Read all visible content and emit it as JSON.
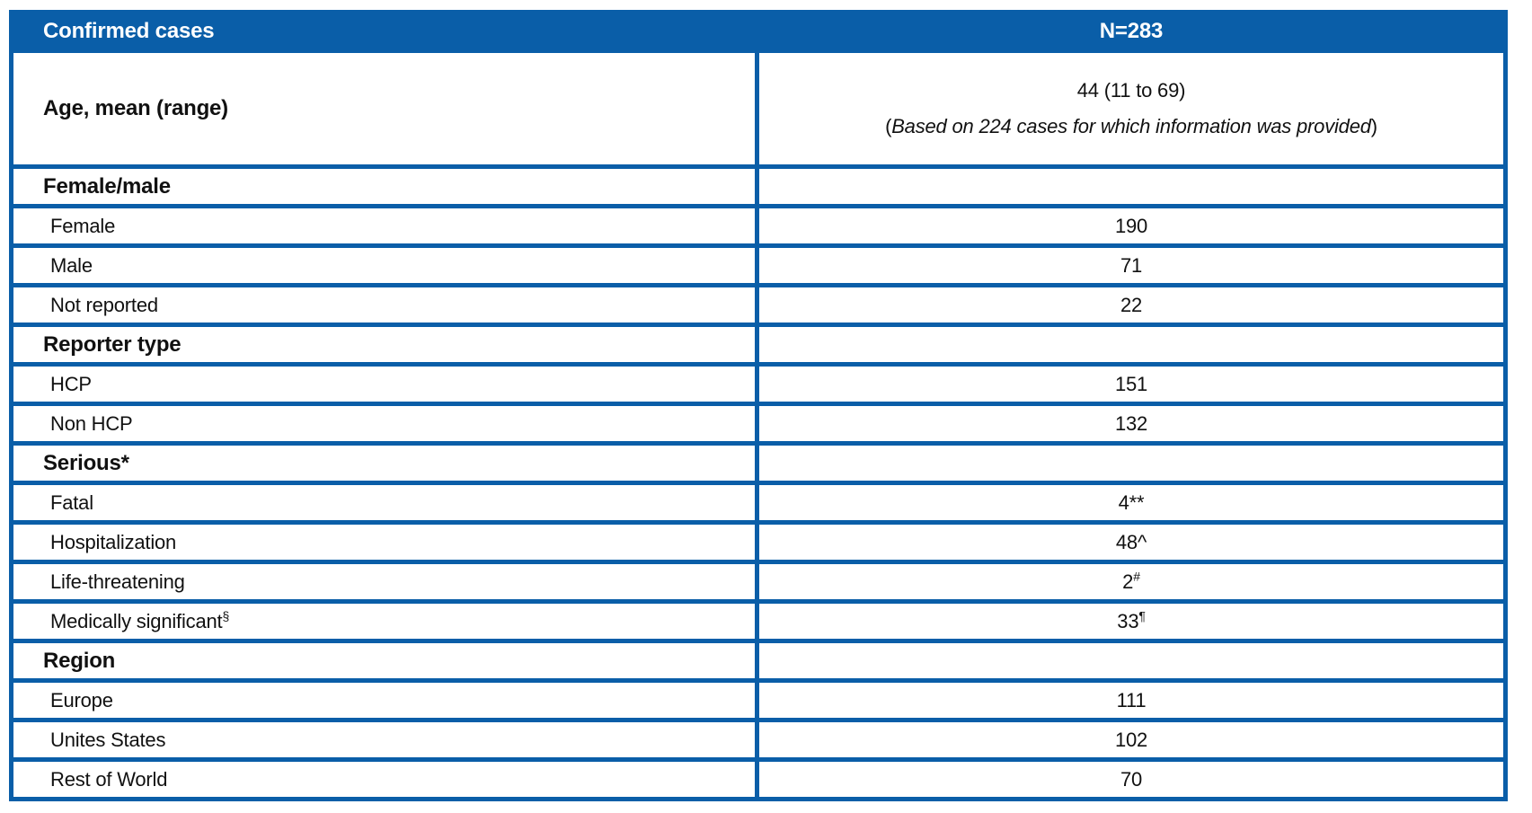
{
  "theme": {
    "accent_blue": "#0A5EA8",
    "header_text_color": "#FFFFFF",
    "body_text_color": "#111111"
  },
  "table": {
    "header": {
      "title": "Confirmed cases",
      "n_label": "N=283"
    },
    "age_row": {
      "label": "Age, mean (range)",
      "value_line1": "44 (11 to 69)",
      "value_line2_prefix": "(",
      "value_line2_italic": "Based on 224 cases for which information was provided",
      "value_line2_suffix": ")"
    },
    "rows": [
      {
        "type": "section",
        "label": "Female/male",
        "label_sup": "",
        "value": "",
        "value_sup": ""
      },
      {
        "type": "item",
        "label": "Female",
        "label_sup": "",
        "value": "190",
        "value_sup": ""
      },
      {
        "type": "item",
        "label": "Male",
        "label_sup": "",
        "value": "71",
        "value_sup": ""
      },
      {
        "type": "item",
        "label": "Not reported",
        "label_sup": "",
        "value": "22",
        "value_sup": ""
      },
      {
        "type": "section",
        "label": "Reporter type",
        "label_sup": "",
        "value": "",
        "value_sup": ""
      },
      {
        "type": "item",
        "label": "HCP",
        "label_sup": "",
        "value": "151",
        "value_sup": ""
      },
      {
        "type": "item",
        "label": "Non HCP",
        "label_sup": "",
        "value": "132",
        "value_sup": ""
      },
      {
        "type": "section",
        "label": "Serious*",
        "label_sup": "",
        "value": "",
        "value_sup": ""
      },
      {
        "type": "item",
        "label": "Fatal",
        "label_sup": "",
        "value": "4**",
        "value_sup": ""
      },
      {
        "type": "item",
        "label": "Hospitalization",
        "label_sup": "",
        "value": "48^",
        "value_sup": ""
      },
      {
        "type": "item",
        "label": "Life-threatening",
        "label_sup": "",
        "value": "2",
        "value_sup": "#"
      },
      {
        "type": "item",
        "label": "Medically significant",
        "label_sup": "§",
        "value": "33",
        "value_sup": "¶"
      },
      {
        "type": "section",
        "label": "Region",
        "label_sup": "",
        "value": "",
        "value_sup": ""
      },
      {
        "type": "item",
        "label": "Europe",
        "label_sup": "",
        "value": "111",
        "value_sup": ""
      },
      {
        "type": "item",
        "label": "Unites States",
        "label_sup": "",
        "value": "102",
        "value_sup": ""
      },
      {
        "type": "item",
        "label": "Rest of World",
        "label_sup": "",
        "value": "70",
        "value_sup": ""
      }
    ]
  }
}
